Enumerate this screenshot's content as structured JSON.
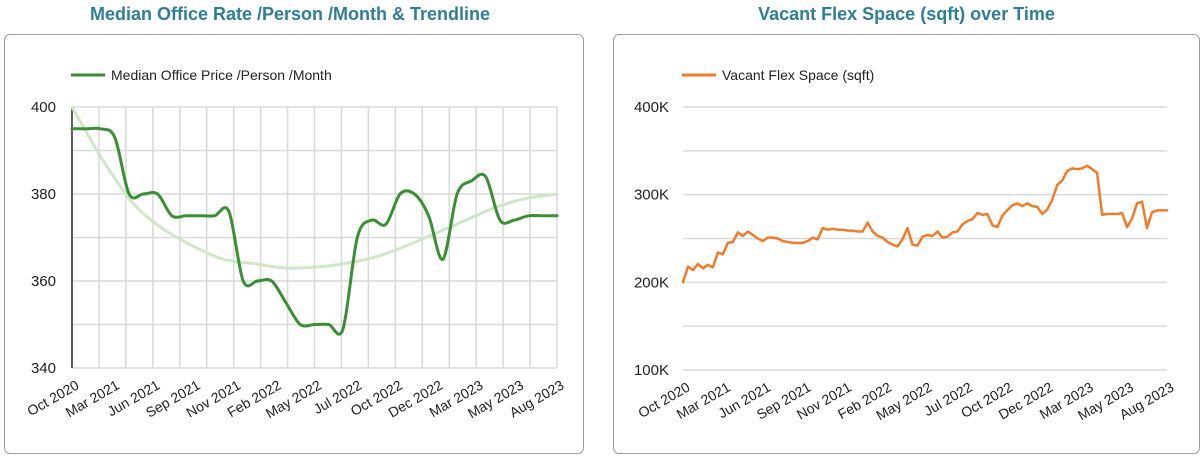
{
  "chart_data": [
    {
      "type": "line",
      "title": "Median Office Rate /Person /Month & Trendline",
      "xlabel": "",
      "ylabel": "",
      "ylim": [
        340,
        400
      ],
      "y_ticks": [
        "340",
        "360",
        "380",
        "400"
      ],
      "x_tick_labels": [
        "Oct 2020",
        "Mar 2021",
        "Jun 2021",
        "Sep 2021",
        "Nov 2021",
        "Feb 2022",
        "May 2022",
        "Jul 2022",
        "Oct 2022",
        "Dec 2022",
        "Mar 2023",
        "May 2023",
        "Aug 2023"
      ],
      "grid": true,
      "legend_position": "top-left",
      "series": [
        {
          "name": "Median Office Price /Person /Month",
          "color": "#3a8f35",
          "values": [
            395,
            395,
            395,
            393,
            380,
            380,
            380,
            375,
            375,
            375,
            375,
            376,
            360,
            360,
            360,
            355,
            350,
            350,
            350,
            349,
            370,
            374,
            373,
            380,
            380,
            375,
            365,
            380,
            383,
            384,
            374,
            374,
            375,
            375,
            375
          ]
        },
        {
          "color": "#cfe6c8",
          "values": [
            400,
            388,
            378,
            372,
            368,
            365,
            364,
            363,
            363.2,
            364,
            365.5,
            368,
            371,
            374,
            377,
            379,
            380
          ]
        }
      ]
    },
    {
      "type": "line",
      "title": "Vacant Flex Space (sqft) over Time",
      "xlabel": "",
      "ylabel": "",
      "ylim": [
        100000,
        400000
      ],
      "y_ticks": [
        "100K",
        "200K",
        "300K",
        "400K"
      ],
      "x_tick_labels": [
        "Oct 2020",
        "Mar 2021",
        "Jun 2021",
        "Sep 2021",
        "Nov 2021",
        "Feb 2022",
        "May 2022",
        "Jul 2022",
        "Oct 2022",
        "Dec 2022",
        "Mar 2023",
        "May 2023",
        "Aug 2023"
      ],
      "grid": true,
      "legend_position": "top-left",
      "series": [
        {
          "name": "Vacant Flex Space (sqft)",
          "color": "#f07b2a",
          "values": [
            200000,
            218000,
            214000,
            221000,
            216000,
            220000,
            217000,
            234000,
            232000,
            245000,
            246000,
            257000,
            253000,
            258000,
            254000,
            250000,
            247000,
            251000,
            251000,
            250000,
            247000,
            246000,
            245000,
            245000,
            245000,
            247000,
            251000,
            249000,
            262000,
            260000,
            261000,
            260000,
            260000,
            259000,
            259000,
            258000,
            258000,
            268000,
            258000,
            253000,
            251000,
            246000,
            243000,
            241000,
            249000,
            262000,
            243000,
            242000,
            252000,
            254000,
            253000,
            258000,
            251000,
            252000,
            257000,
            258000,
            266000,
            270000,
            272000,
            279000,
            277000,
            278000,
            265000,
            263000,
            276000,
            282000,
            288000,
            290000,
            287000,
            290000,
            287000,
            286000,
            278000,
            283000,
            294000,
            311000,
            316000,
            327000,
            330000,
            329000,
            330000,
            333000,
            329000,
            325000,
            277000,
            278000,
            278000,
            278000,
            279000,
            263000,
            273000,
            290000,
            292000,
            262000,
            280000,
            282000,
            282000,
            282000
          ]
        }
      ]
    }
  ]
}
